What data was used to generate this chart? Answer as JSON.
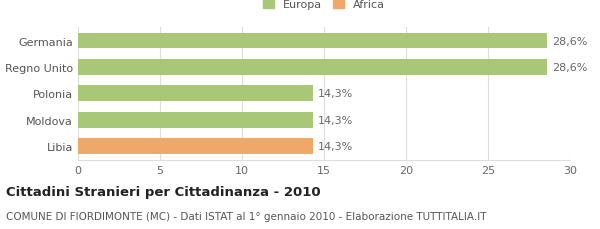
{
  "categories": [
    "Libia",
    "Moldova",
    "Polonia",
    "Regno Unito",
    "Germania"
  ],
  "values": [
    14.3,
    14.3,
    14.3,
    28.6,
    28.6
  ],
  "bar_colors": [
    "#f0a868",
    "#a8c878",
    "#a8c878",
    "#a8c878",
    "#a8c878"
  ],
  "value_labels": [
    "14,3%",
    "14,3%",
    "14,3%",
    "28,6%",
    "28,6%"
  ],
  "xlim": [
    0,
    30
  ],
  "xticks": [
    0,
    5,
    10,
    15,
    20,
    25,
    30
  ],
  "legend_items": [
    {
      "label": "Europa",
      "color": "#a8c878"
    },
    {
      "label": "Africa",
      "color": "#f0a868"
    }
  ],
  "title": "Cittadini Stranieri per Cittadinanza - 2010",
  "subtitle": "COMUNE DI FIORDIMONTE (MC) - Dati ISTAT al 1° gennaio 2010 - Elaborazione TUTTITALIA.IT",
  "background_color": "#ffffff",
  "grid_color": "#dddddd",
  "bar_height": 0.6,
  "title_fontsize": 9.5,
  "subtitle_fontsize": 7.5,
  "tick_fontsize": 8,
  "label_fontsize": 8
}
